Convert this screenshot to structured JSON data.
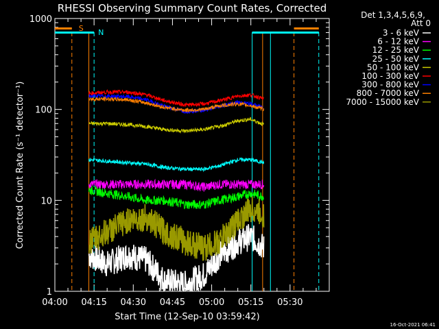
{
  "chart_data": {
    "type": "line",
    "title": "RHESSI Observing Summary Count Rates, Corrected",
    "xlabel": "Start Time (12-Sep-10 03:59:42)",
    "ylabel": "Corrected Count Rate (s⁻¹ detector⁻¹)",
    "x_unit": "minutes after 04:00 UT",
    "xlim": [
      0,
      105
    ],
    "ylim": [
      1,
      1000
    ],
    "yscale": "log",
    "x_ticks": [
      {
        "value": 0,
        "label": "04:00"
      },
      {
        "value": 15,
        "label": "04:15"
      },
      {
        "value": 30,
        "label": "04:30"
      },
      {
        "value": 45,
        "label": "04:45"
      },
      {
        "value": 60,
        "label": "05:00"
      },
      {
        "value": 75,
        "label": "05:15"
      },
      {
        "value": 90,
        "label": "05:30"
      }
    ],
    "y_ticks": [
      {
        "value": 1,
        "label": "1"
      },
      {
        "value": 10,
        "label": "10"
      },
      {
        "value": 100,
        "label": "100"
      },
      {
        "value": 1000,
        "label": "1000"
      }
    ],
    "legend": {
      "placement": "right",
      "header": [
        "Det 1,3,4,5,6,9,",
        "Att 0"
      ]
    },
    "footer_date": "16-Oct-2021 06:41",
    "x": [
      13,
      20,
      28,
      35,
      42,
      50,
      57,
      63,
      70,
      75,
      80
    ],
    "series": [
      {
        "name": "3 - 6 keV",
        "color": "#ffffff",
        "values": [
          2.5,
          2.0,
          2.5,
          2.2,
          1.3,
          1.2,
          1.5,
          2.5,
          3.5,
          4.0,
          3.0
        ]
      },
      {
        "name": "6 - 12 keV",
        "color": "#ff00ff",
        "values": [
          15,
          15,
          15,
          15,
          15,
          15,
          14,
          15,
          15,
          15,
          15
        ]
      },
      {
        "name": "12 - 25 keV",
        "color": "#00ff00",
        "values": [
          13,
          12,
          11,
          10,
          10,
          9,
          9,
          10,
          11,
          12,
          11
        ]
      },
      {
        "name": "25 - 50 keV",
        "color": "#00ffff",
        "values": [
          28,
          27,
          26,
          25,
          23,
          22,
          22,
          24,
          28,
          28,
          26
        ]
      },
      {
        "name": "50 - 100 keV",
        "color": "#cccc00",
        "values": [
          70,
          70,
          68,
          65,
          60,
          58,
          60,
          65,
          75,
          78,
          68
        ]
      },
      {
        "name": "100 - 300 keV",
        "color": "#ff0000",
        "values": [
          150,
          155,
          155,
          145,
          125,
          112,
          115,
          125,
          140,
          145,
          130
        ]
      },
      {
        "name": "300 - 800 keV",
        "color": "#0000ff",
        "values": [
          140,
          140,
          138,
          128,
          108,
          95,
          98,
          108,
          120,
          115,
          105
        ]
      },
      {
        "name": "800 - 7000 keV",
        "color": "#ff8000",
        "values": [
          130,
          130,
          128,
          118,
          105,
          98,
          100,
          110,
          115,
          110,
          100
        ]
      },
      {
        "name": "7000 - 15000 keV",
        "color": "#999900",
        "values": [
          3.5,
          4.5,
          6.0,
          6.5,
          4.5,
          3.5,
          3.0,
          3.5,
          6.0,
          8.0,
          7.0
        ]
      }
    ],
    "annotations": {
      "saa_label": "S",
      "night_label": "N",
      "saa_color": "#ff8000",
      "night_color": "#00ffff",
      "saa_dashed_x": [
        6.5,
        91.5
      ],
      "night_dashed_x": [
        15,
        101
      ],
      "data_gap_edges_x": [
        13,
        79.5
      ],
      "night_solid_x": [
        75.5,
        82.5
      ],
      "saa_bars": [
        [
          0,
          6.5
        ],
        [
          91.5,
          101
        ]
      ],
      "night_bars": [
        [
          0,
          15
        ],
        [
          75.5,
          101
        ]
      ]
    }
  }
}
